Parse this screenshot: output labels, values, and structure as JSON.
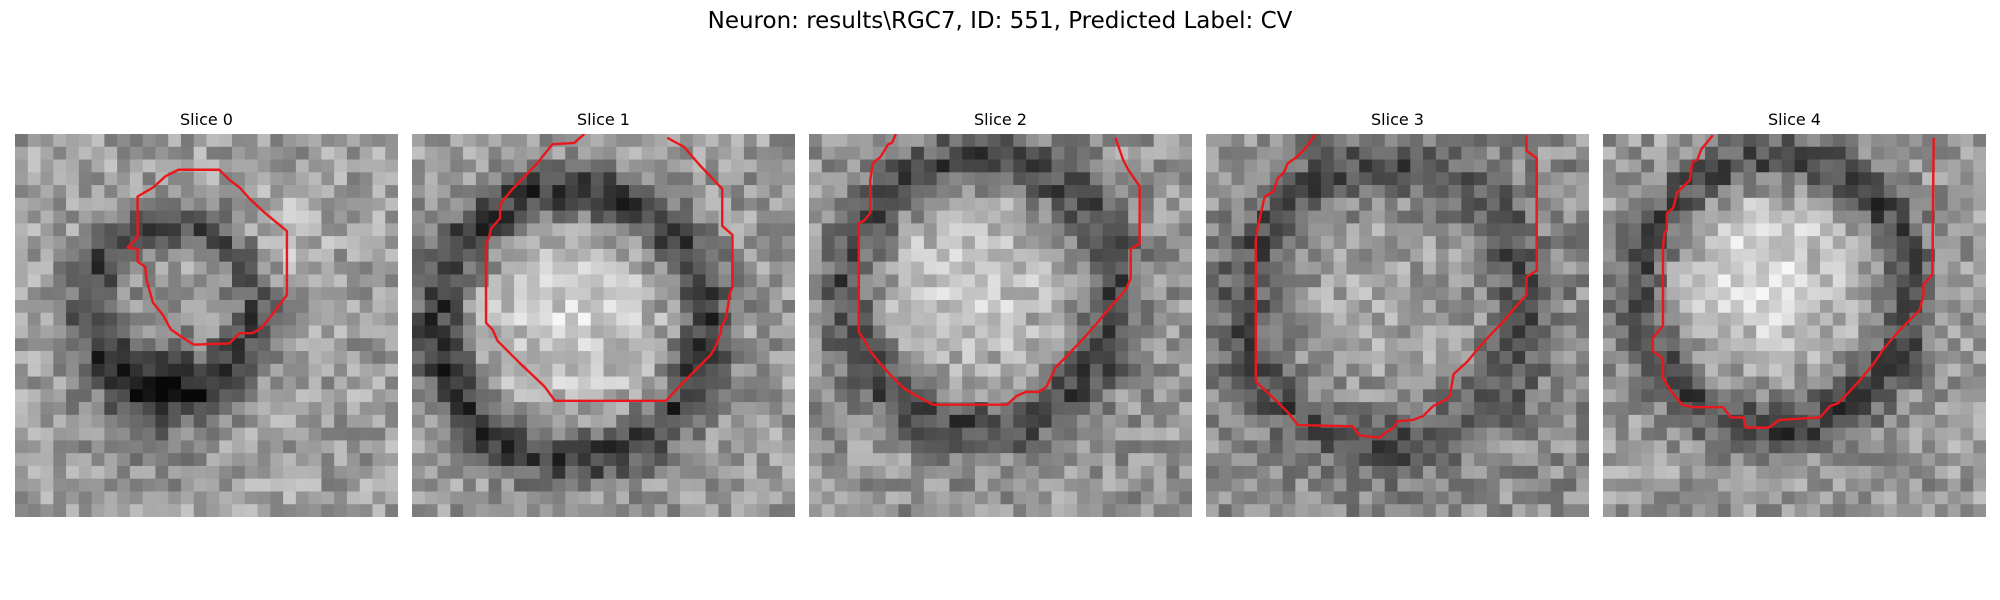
{
  "figure": {
    "title": "Neuron: results\\RGC7, ID: 551, Predicted Label: CV"
  },
  "panels": [
    {
      "title": "Slice 0"
    },
    {
      "title": "Slice 1"
    },
    {
      "title": "Slice 2"
    },
    {
      "title": "Slice 3"
    },
    {
      "title": "Slice 4"
    }
  ],
  "colors": {
    "contour": "#e8181c",
    "background": "#ffffff"
  }
}
